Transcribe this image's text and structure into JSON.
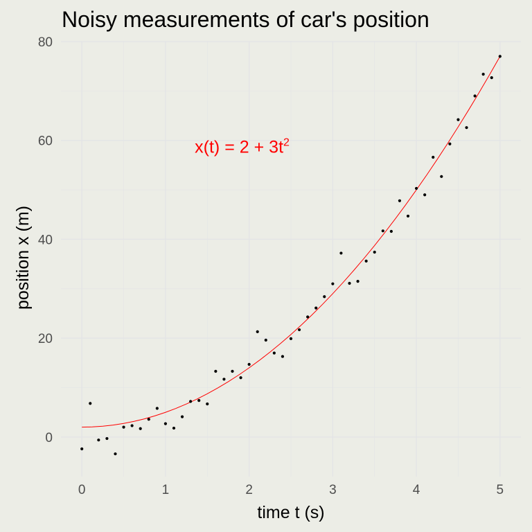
{
  "chart_data": {
    "type": "scatter",
    "title": "Noisy measurements of car's position",
    "xlabel": "time t (s)",
    "ylabel": "position x (m)",
    "xlim": [
      -0.25,
      5.25
    ],
    "ylim": [
      -8,
      80
    ],
    "xticks": [
      0,
      1,
      2,
      3,
      4,
      5
    ],
    "yticks": [
      0,
      20,
      40,
      60,
      80
    ],
    "grid": true,
    "legend": "none",
    "point_color": "#000000",
    "series": [
      {
        "x": [
          0.0,
          0.1,
          0.2,
          0.3,
          0.4,
          0.5,
          0.6,
          0.7,
          0.8,
          0.9,
          1.0,
          1.1,
          1.2,
          1.3,
          1.4,
          1.5,
          1.6,
          1.7,
          1.8,
          1.9,
          2.0,
          2.1,
          2.2,
          2.3,
          2.4,
          2.5,
          2.6,
          2.7,
          2.8,
          2.9,
          3.0,
          3.1,
          3.2,
          3.3,
          3.4,
          3.5,
          3.6,
          3.7,
          3.8,
          3.9,
          4.0,
          4.1,
          4.2,
          4.3,
          4.4,
          4.5,
          4.6,
          4.7,
          4.8,
          4.9,
          5.0
        ],
        "y": [
          -2.4,
          6.8,
          -0.6,
          -0.3,
          -3.4,
          2.0,
          2.3,
          1.7,
          3.6,
          5.8,
          2.7,
          1.8,
          4.1,
          7.2,
          7.4,
          6.7,
          13.3,
          11.7,
          13.3,
          12.0,
          14.7,
          21.3,
          19.6,
          17.0,
          16.3,
          19.9,
          21.7,
          24.3,
          26.1,
          28.4,
          31.0,
          37.2,
          31.1,
          31.5,
          35.6,
          37.4,
          41.7,
          41.6,
          47.8,
          44.7,
          50.3,
          49.0,
          56.6,
          52.7,
          59.3,
          64.2,
          62.6,
          69.0,
          73.4,
          72.7,
          77.0
        ]
      },
      {
        "x": [
          0,
          0.125,
          0.25,
          0.375,
          0.5,
          0.625,
          0.75,
          0.875,
          1,
          1.125,
          1.25,
          1.375,
          1.5,
          1.625,
          1.75,
          1.875,
          2,
          2.125,
          2.25,
          2.375,
          2.5,
          2.625,
          2.75,
          2.875,
          3,
          3.125,
          3.25,
          3.375,
          3.5,
          3.625,
          3.75,
          3.875,
          4,
          4.125,
          4.25,
          4.375,
          4.5,
          4.625,
          4.75,
          4.875,
          5
        ],
        "y": [
          2,
          2.0469,
          2.1875,
          2.4219,
          2.75,
          3.1719,
          3.6875,
          4.2969,
          5,
          5.7969,
          6.6875,
          7.6719,
          8.75,
          9.9219,
          11.1875,
          12.5469,
          14,
          15.5469,
          17.1875,
          18.9219,
          20.75,
          22.6719,
          24.6875,
          26.7969,
          29,
          31.2969,
          33.6875,
          36.1719,
          38.75,
          41.4219,
          44.1875,
          47.0469,
          50,
          53.0469,
          56.1875,
          59.4219,
          62.75,
          66.1719,
          69.6875,
          73.2969,
          77
        ],
        "color": "#ff0000"
      }
    ],
    "annotation": {
      "x_part": "x(t)",
      "equals": " = ",
      "rhs": "2 + 3t",
      "exponent": "2",
      "x": 1.35,
      "y": 57.5,
      "color": "#ff0000"
    }
  }
}
